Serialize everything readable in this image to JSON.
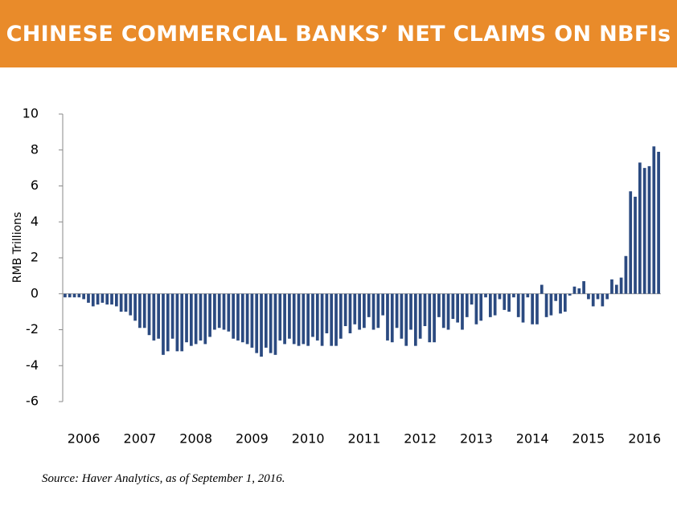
{
  "chart_data": {
    "type": "bar",
    "title": "CHINESE COMMERCIAL BANKS’ NET CLAIMS ON NBFIs",
    "y_label": "RMB Trillions",
    "source": "Source: Haver Analytics, as of September 1, 2016.",
    "color": "#2b4a80",
    "categories": [
      null,
      null,
      null,
      null,
      "2006",
      null,
      null,
      null,
      null,
      null,
      null,
      null,
      null,
      null,
      null,
      null,
      "2007",
      null,
      null,
      null,
      null,
      null,
      null,
      null,
      null,
      null,
      null,
      null,
      "2008",
      null,
      null,
      null,
      null,
      null,
      null,
      null,
      null,
      null,
      null,
      null,
      "2009",
      null,
      null,
      null,
      null,
      null,
      null,
      null,
      null,
      null,
      null,
      null,
      "2010",
      null,
      null,
      null,
      null,
      null,
      null,
      null,
      null,
      null,
      null,
      null,
      "2011",
      null,
      null,
      null,
      null,
      null,
      null,
      null,
      null,
      null,
      null,
      null,
      "2012",
      null,
      null,
      null,
      null,
      null,
      null,
      null,
      null,
      null,
      null,
      null,
      "2013",
      null,
      null,
      null,
      null,
      null,
      null,
      null,
      null,
      null,
      null,
      null,
      "2014",
      null,
      null,
      null,
      null,
      null,
      null,
      null,
      null,
      null,
      null,
      null,
      "2015",
      null,
      null,
      null,
      null,
      null,
      null,
      null,
      null,
      null,
      null,
      null,
      "2016",
      null,
      null,
      null
    ],
    "values": [
      -0.2,
      -0.2,
      -0.2,
      -0.2,
      -0.3,
      -0.5,
      -0.7,
      -0.6,
      -0.5,
      -0.6,
      -0.6,
      -0.7,
      -1.0,
      -1.0,
      -1.2,
      -1.5,
      -1.9,
      -1.9,
      -2.3,
      -2.6,
      -2.5,
      -3.4,
      -3.2,
      -2.5,
      -3.2,
      -3.2,
      -2.7,
      -2.9,
      -2.8,
      -2.6,
      -2.8,
      -2.4,
      -2.0,
      -1.9,
      -2.0,
      -2.1,
      -2.5,
      -2.6,
      -2.7,
      -2.8,
      -3.0,
      -3.3,
      -3.5,
      -3.0,
      -3.3,
      -3.4,
      -2.6,
      -2.8,
      -2.5,
      -2.8,
      -2.9,
      -2.8,
      -2.9,
      -2.4,
      -2.6,
      -2.9,
      -2.2,
      -2.9,
      -2.9,
      -2.5,
      -1.8,
      -2.2,
      -1.7,
      -2.0,
      -1.9,
      -1.3,
      -2.0,
      -1.9,
      -1.2,
      -2.6,
      -2.7,
      -1.9,
      -2.5,
      -2.9,
      -2.0,
      -2.9,
      -2.5,
      -1.8,
      -2.7,
      -2.7,
      -1.3,
      -1.9,
      -2.0,
      -1.4,
      -1.6,
      -2.0,
      -1.3,
      -0.6,
      -1.7,
      -1.5,
      -0.2,
      -1.3,
      -1.2,
      -0.3,
      -0.9,
      -1.0,
      -0.2,
      -1.3,
      -1.6,
      -0.2,
      -1.7,
      -1.7,
      0.5,
      -1.3,
      -1.2,
      -0.4,
      -1.1,
      -1.0,
      -0.1,
      0.4,
      0.3,
      0.7,
      -0.3,
      -0.7,
      -0.3,
      -0.7,
      -0.3,
      0.8,
      0.5,
      0.9,
      2.1,
      5.7,
      5.4,
      7.3,
      7.0,
      7.1,
      8.2,
      7.9
    ],
    "ylim": [
      -6,
      10
    ],
    "yticks": [
      -6,
      -4,
      -2,
      0,
      2,
      4,
      6,
      8,
      10
    ]
  }
}
